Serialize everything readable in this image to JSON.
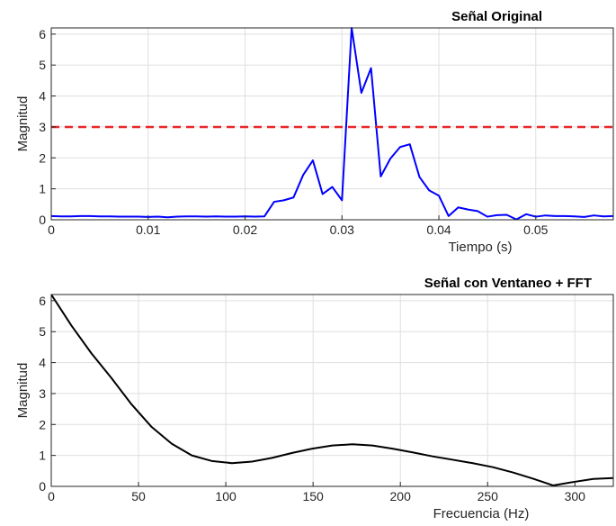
{
  "colors": {
    "signal": "#0000ff",
    "spectrum": "#000000",
    "threshold": "#e8272a",
    "grid": "#dfdfdf"
  },
  "chart_data": [
    {
      "type": "line",
      "title": "Señal Original",
      "xlabel": "Tiempo (s)",
      "ylabel": "Magnitud",
      "xlim": [
        0,
        0.058
      ],
      "ylim": [
        0,
        6.2
      ],
      "xticks": [
        0,
        0.01,
        0.02,
        0.03,
        0.04,
        0.05
      ],
      "xtick_labels": [
        "0",
        "0.01",
        "0.02",
        "0.03",
        "0.04",
        "0.05"
      ],
      "yticks": [
        0,
        1,
        2,
        3,
        4,
        5,
        6
      ],
      "ytick_labels": [
        "0",
        "1",
        "2",
        "3",
        "4",
        "5",
        "6"
      ],
      "grid": true,
      "series": [
        {
          "color": "#0000ff",
          "x": [
            0,
            0.001,
            0.002,
            0.003,
            0.004,
            0.005,
            0.006,
            0.007,
            0.008,
            0.009,
            0.01,
            0.011,
            0.012,
            0.013,
            0.014,
            0.015,
            0.016,
            0.017,
            0.018,
            0.019,
            0.02,
            0.021,
            0.022,
            0.023,
            0.024,
            0.025,
            0.026,
            0.027,
            0.028,
            0.029,
            0.03,
            0.031,
            0.032,
            0.033,
            0.034,
            0.035,
            0.036,
            0.037,
            0.038,
            0.039,
            0.04,
            0.041,
            0.042,
            0.043,
            0.044,
            0.045,
            0.046,
            0.047,
            0.048,
            0.049,
            0.05,
            0.051,
            0.052,
            0.053,
            0.054,
            0.055,
            0.056,
            0.057,
            0.058
          ],
          "y": [
            0.12,
            0.11,
            0.11,
            0.12,
            0.12,
            0.11,
            0.11,
            0.1,
            0.1,
            0.1,
            0.09,
            0.1,
            0.08,
            0.1,
            0.11,
            0.11,
            0.1,
            0.11,
            0.1,
            0.1,
            0.11,
            0.1,
            0.11,
            0.58,
            0.63,
            0.72,
            1.45,
            1.92,
            0.83,
            1.06,
            0.63,
            6.2,
            4.1,
            4.9,
            1.4,
            1.98,
            2.35,
            2.44,
            1.38,
            0.95,
            0.78,
            0.12,
            0.4,
            0.33,
            0.28,
            0.1,
            0.15,
            0.16,
            0.01,
            0.18,
            0.1,
            0.14,
            0.12,
            0.12,
            0.11,
            0.09,
            0.14,
            0.11,
            0.12
          ]
        },
        {
          "color": "#e8272a",
          "style": "dashed",
          "x": [
            0,
            0.058
          ],
          "y": [
            3,
            3
          ]
        }
      ]
    },
    {
      "type": "line",
      "title": "Señal con Ventaneo + FFT",
      "xlabel": "Frecuencia (Hz)",
      "ylabel": "Magnitud",
      "xlim": [
        0,
        322
      ],
      "ylim": [
        0,
        6.2
      ],
      "xticks": [
        0,
        50,
        100,
        150,
        200,
        250,
        300
      ],
      "xtick_labels": [
        "0",
        "50",
        "100",
        "150",
        "200",
        "250",
        "300"
      ],
      "yticks": [
        0,
        1,
        2,
        3,
        4,
        5,
        6
      ],
      "ytick_labels": [
        "0",
        "1",
        "2",
        "3",
        "4",
        "5",
        "6"
      ],
      "grid": true,
      "series": [
        {
          "color": "#000000",
          "x": [
            0,
            11.5,
            23,
            34.5,
            46,
            57.5,
            69,
            80.5,
            92,
            103.5,
            115,
            126.5,
            138,
            149.5,
            161,
            172.5,
            184,
            195.5,
            207,
            218.5,
            230,
            241.5,
            253,
            264.5,
            276,
            287.5,
            299,
            310.5,
            322
          ],
          "y": [
            6.2,
            5.2,
            4.3,
            3.5,
            2.65,
            1.92,
            1.38,
            1.0,
            0.82,
            0.75,
            0.8,
            0.92,
            1.08,
            1.22,
            1.32,
            1.36,
            1.32,
            1.22,
            1.1,
            0.97,
            0.86,
            0.75,
            0.62,
            0.45,
            0.25,
            0.03,
            0.14,
            0.24,
            0.27
          ]
        }
      ]
    }
  ]
}
